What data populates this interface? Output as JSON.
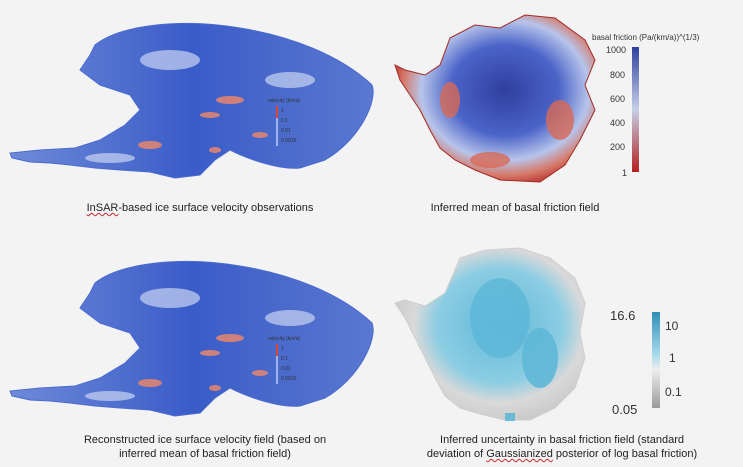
{
  "captions": {
    "top_left_a": "InSAR",
    "top_left_b": "-based ice surface velocity observations",
    "top_right": "Inferred mean of basal friction field",
    "bottom_left_1": "Reconstructed ice surface velocity field (based on",
    "bottom_left_2": "inferred mean of basal friction field)",
    "bottom_right_1": "Inferred uncertainty in basal friction field (standard",
    "bottom_right_2a": "deviation of ",
    "bottom_right_2b": "Gaussianized",
    "bottom_right_2c": " posterior of log basal friction)"
  },
  "velocity_legend": {
    "title": "velocity (km/a)",
    "ticks": [
      "1",
      "0.1",
      "0.01",
      "0.0016"
    ]
  },
  "friction_colorbar": {
    "title": "basal friction (Pa/(km/a))^(1/3)",
    "ticks": [
      "1000",
      "800",
      "600",
      "400",
      "200",
      "1"
    ]
  },
  "uncertainty_colorbar": {
    "max_label": "16.6",
    "min_label": "0.05",
    "ticks": [
      "10",
      "1",
      "0.1"
    ]
  },
  "colors": {
    "velocity_blue": "#3a5cc8",
    "velocity_light": "#9eb4e8",
    "velocity_red": "#d9473a",
    "friction_blue": "#2f3f9e",
    "friction_red": "#b32020",
    "uncert_cyan": "#5fb8d8",
    "uncert_grey": "#d9d9d9"
  }
}
